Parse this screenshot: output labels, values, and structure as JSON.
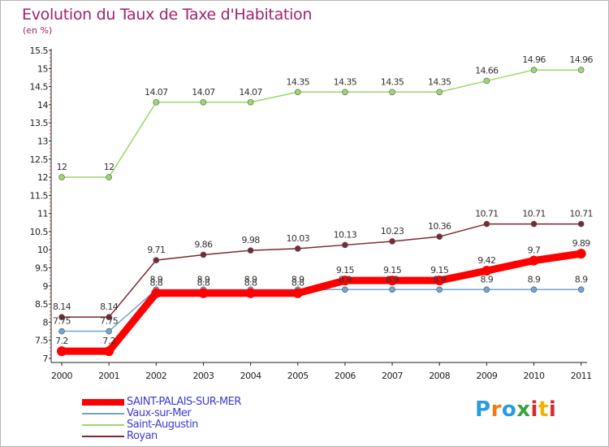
{
  "header": {
    "title": "Evolution du Taux de Taxe d'Habitation",
    "subtitle": "(en %)"
  },
  "logo": {
    "text": "Proxiti",
    "colors": [
      "#2a9be0",
      "#f07a12",
      "#2a9be0",
      "#3aa33a",
      "#d9282f",
      "#f0b400",
      "#d9282f"
    ]
  },
  "chart_data": {
    "type": "line",
    "x": [
      "2000",
      "2001",
      "2002",
      "2003",
      "2004",
      "2005",
      "2006",
      "2007",
      "2008",
      "2009",
      "2010",
      "2011"
    ],
    "ylim": [
      7,
      15.5
    ],
    "yticks": [
      "7",
      "7.5",
      "8",
      "8.5",
      "9",
      "9.5",
      "10",
      "10.5",
      "11",
      "11.5",
      "12",
      "12.5",
      "13",
      "13.5",
      "14",
      "14.5",
      "15",
      "15.5"
    ],
    "grid": false,
    "legend": "bottom-left",
    "series": [
      {
        "name": "SAINT-PALAIS-SUR-MER",
        "color": "#ff0000",
        "values": [
          7.2,
          7.2,
          8.8,
          8.8,
          8.8,
          8.8,
          9.15,
          9.15,
          9.15,
          9.42,
          9.7,
          9.89
        ],
        "labels": [
          "7.2",
          "7.2",
          "8.8",
          "8.8",
          "8.8",
          "8.8",
          "9.15",
          "9.15",
          "9.15",
          "9.42",
          "9.7",
          "9.89"
        ]
      },
      {
        "name": "Vaux-sur-Mer",
        "color": "#6fa6d4",
        "values": [
          7.75,
          7.75,
          8.9,
          8.9,
          8.9,
          8.9,
          8.9,
          8.9,
          8.9,
          8.9,
          8.9,
          8.9
        ],
        "labels": [
          "7.75",
          "7.75",
          "8.9",
          "8.9",
          "8.9",
          "8.9",
          "8.9",
          "8.9",
          "8.9",
          "8.9",
          "8.9",
          "8.9"
        ]
      },
      {
        "name": "Saint-Augustin",
        "color": "#9bd86d",
        "values": [
          12,
          12,
          14.07,
          14.07,
          14.07,
          14.35,
          14.35,
          14.35,
          14.35,
          14.66,
          14.96,
          14.96
        ],
        "labels": [
          "12",
          "12",
          "14.07",
          "14.07",
          "14.07",
          "14.35",
          "14.35",
          "14.35",
          "14.35",
          "14.66",
          "14.96",
          "14.96"
        ]
      },
      {
        "name": "Royan",
        "color": "#7a2a35",
        "values": [
          8.14,
          8.14,
          9.71,
          9.86,
          9.98,
          10.03,
          10.13,
          10.23,
          10.36,
          10.71,
          10.71,
          10.71
        ],
        "labels": [
          "8.14",
          "8.14",
          "9.71",
          "9.86",
          "9.98",
          "10.03",
          "10.13",
          "10.23",
          "10.36",
          "10.71",
          "10.71",
          "10.71"
        ]
      }
    ]
  }
}
